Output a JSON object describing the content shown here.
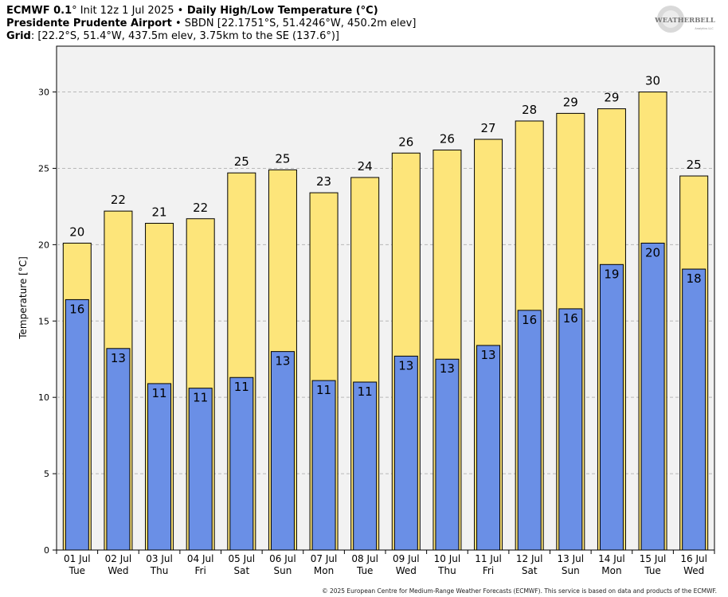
{
  "header": {
    "model": "ECMWF 0.1",
    "deg": "°",
    "init": " Init 12z 1 Jul 2025 ",
    "bullet": "•",
    "product": " Daily High/Low Temperature (°C)",
    "station_name": "Presidente Prudente Airport",
    "station_info": " • SBDN [22.1751°S, 51.4246°W, 450.2m elev]",
    "grid_label": "Grid",
    "grid_info": ": [22.2°S, 51.4°W, 437.5m elev, 3.75km to the SE (137.6°)]"
  },
  "logo": {
    "text": "WEATHERBELL",
    "tagline": "Analytics LLC"
  },
  "copyright": "© 2025 European Centre for Medium-Range Weather Forecasts (ECMWF). This service is based on data and products of the ECMWF.",
  "colors": {
    "high": "#fde57a",
    "low": "#6a8fe6",
    "plot_bg": "#f2f2f2",
    "grid": "#b8b8b8"
  },
  "chart_data": {
    "type": "bar",
    "title": "Daily High/Low Temperature (°C)",
    "ylabel": "Temperature [°C]",
    "xlabel": "",
    "ylim": [
      0,
      33
    ],
    "yticks": [
      0,
      5,
      10,
      15,
      20,
      25,
      30
    ],
    "categories": [
      {
        "date": "01 Jul",
        "day": "Tue"
      },
      {
        "date": "02 Jul",
        "day": "Wed"
      },
      {
        "date": "03 Jul",
        "day": "Thu"
      },
      {
        "date": "04 Jul",
        "day": "Fri"
      },
      {
        "date": "05 Jul",
        "day": "Sat"
      },
      {
        "date": "06 Jul",
        "day": "Sun"
      },
      {
        "date": "07 Jul",
        "day": "Mon"
      },
      {
        "date": "08 Jul",
        "day": "Tue"
      },
      {
        "date": "09 Jul",
        "day": "Wed"
      },
      {
        "date": "10 Jul",
        "day": "Thu"
      },
      {
        "date": "11 Jul",
        "day": "Fri"
      },
      {
        "date": "12 Jul",
        "day": "Sat"
      },
      {
        "date": "13 Jul",
        "day": "Sun"
      },
      {
        "date": "14 Jul",
        "day": "Mon"
      },
      {
        "date": "15 Jul",
        "day": "Tue"
      },
      {
        "date": "16 Jul",
        "day": "Wed"
      }
    ],
    "series": [
      {
        "name": "High",
        "values": [
          20.1,
          22.2,
          21.4,
          21.7,
          24.7,
          24.9,
          23.4,
          24.4,
          26.0,
          26.2,
          26.9,
          28.1,
          28.6,
          28.9,
          30.0,
          24.5
        ],
        "labels": [
          "20",
          "22",
          "21",
          "22",
          "25",
          "25",
          "23",
          "24",
          "26",
          "26",
          "27",
          "28",
          "29",
          "29",
          "30",
          "25"
        ]
      },
      {
        "name": "Low",
        "values": [
          16.4,
          13.2,
          10.9,
          10.6,
          11.3,
          13.0,
          11.1,
          11.0,
          12.7,
          12.5,
          13.4,
          15.7,
          15.8,
          18.7,
          20.1,
          18.4
        ],
        "labels": [
          "16",
          "13",
          "11",
          "11",
          "11",
          "13",
          "11",
          "11",
          "13",
          "13",
          "13",
          "16",
          "16",
          "19",
          "20",
          "18"
        ]
      }
    ]
  }
}
